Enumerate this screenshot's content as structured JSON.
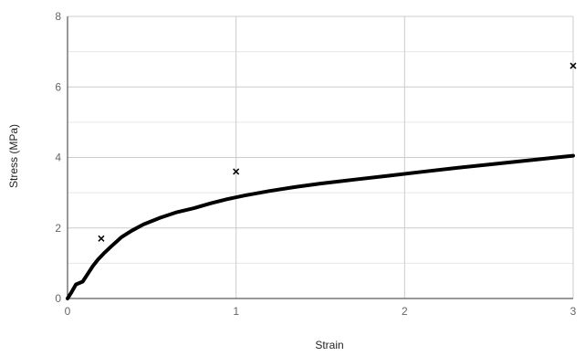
{
  "chart_data": {
    "type": "scatter",
    "title": "",
    "xlabel": "Strain",
    "ylabel": "Stress (MPa)",
    "xlim": [
      0,
      3
    ],
    "ylim": [
      0,
      8
    ],
    "x_ticks": [
      0,
      1,
      2,
      3
    ],
    "y_ticks": [
      0,
      2,
      4,
      6,
      8
    ],
    "grid": true,
    "legend": "none",
    "colors": {
      "line": "#000000",
      "marker": "#000000",
      "grid_major": "#cccccc",
      "grid_minor": "#e6e6e6",
      "tick_label": "#666666"
    },
    "series": [
      {
        "kind": "line",
        "x": [
          0,
          0.02,
          0.05,
          0.09,
          0.12,
          0.15,
          0.18,
          0.22,
          0.26,
          0.32,
          0.38,
          0.45,
          0.55,
          0.65,
          0.75,
          0.85,
          0.95,
          1.05,
          1.2,
          1.35,
          1.5,
          1.7,
          1.9,
          2.1,
          2.3,
          2.5,
          2.7,
          2.9,
          3.0
        ],
        "y": [
          0,
          0.15,
          0.4,
          0.48,
          0.7,
          0.92,
          1.1,
          1.3,
          1.48,
          1.74,
          1.92,
          2.1,
          2.29,
          2.45,
          2.56,
          2.7,
          2.82,
          2.92,
          3.05,
          3.16,
          3.26,
          3.37,
          3.48,
          3.59,
          3.7,
          3.8,
          3.9,
          4.0,
          4.05
        ]
      },
      {
        "kind": "points",
        "marker": "x",
        "x": [
          0.2,
          1.0,
          3.0
        ],
        "y": [
          1.7,
          3.6,
          6.6
        ]
      }
    ]
  }
}
